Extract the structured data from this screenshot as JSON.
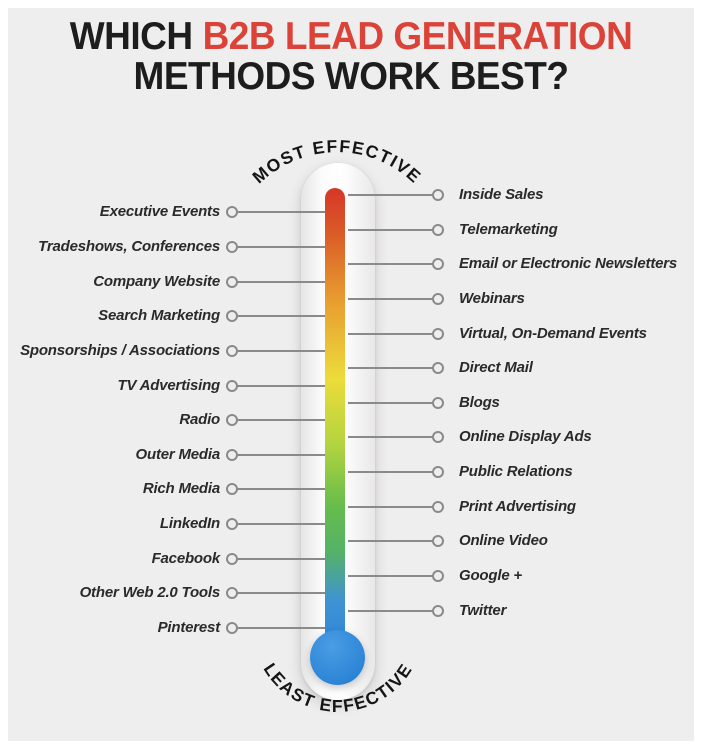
{
  "background": {
    "outer": "#ffffff",
    "panel": "#efeeee"
  },
  "title": {
    "part1": "WHICH",
    "part2": "B2B LEAD GENERATION",
    "line2": "METHODS WORK BEST?",
    "accent_color": "#dc4338",
    "text_color": "#1d1d1d"
  },
  "thermometer": {
    "top_arc_label": "MOST EFFECTIVE",
    "bottom_arc_label": "LEAST EFFECTIVE",
    "gradient_top_to_bottom": [
      "#d63627",
      "#da5b28",
      "#e79a30",
      "#ecdc3a",
      "#b5d43f",
      "#66bd4b",
      "#3f92d4",
      "#2f87d7"
    ],
    "bulb_color": "#338ad8",
    "connector_color": "#8a8a8a",
    "label_text_color": "#2a2a2a"
  },
  "chart_data": {
    "type": "table",
    "title": "WHICH B2B LEAD GENERATION METHODS WORK BEST?",
    "description": "Thermometer infographic ranking B2B lead generation methods from most effective (top, red) to least effective (bottom, blue). Labels alternate right/left down the scale.",
    "columns": [
      "rank",
      "method",
      "side"
    ],
    "rows": [
      [
        1,
        "Inside Sales",
        "right"
      ],
      [
        2,
        "Executive Events",
        "left"
      ],
      [
        3,
        "Telemarketing",
        "right"
      ],
      [
        4,
        "Tradeshows, Conferences",
        "left"
      ],
      [
        5,
        "Email or Electronic Newsletters",
        "right"
      ],
      [
        6,
        "Company Website",
        "left"
      ],
      [
        7,
        "Webinars",
        "right"
      ],
      [
        8,
        "Search Marketing",
        "left"
      ],
      [
        9,
        "Virtual, On-Demand Events",
        "right"
      ],
      [
        10,
        "Sponsorships / Associations",
        "left"
      ],
      [
        11,
        "Direct Mail",
        "right"
      ],
      [
        12,
        "TV Advertising",
        "left"
      ],
      [
        13,
        "Blogs",
        "right"
      ],
      [
        14,
        "Radio",
        "left"
      ],
      [
        15,
        "Online Display Ads",
        "right"
      ],
      [
        16,
        "Outer Media",
        "left"
      ],
      [
        17,
        "Public Relations",
        "right"
      ],
      [
        18,
        "Rich Media",
        "left"
      ],
      [
        19,
        "Print Advertising",
        "right"
      ],
      [
        20,
        "LinkedIn",
        "left"
      ],
      [
        21,
        "Online Video",
        "right"
      ],
      [
        22,
        "Facebook",
        "left"
      ],
      [
        23,
        "Google +",
        "right"
      ],
      [
        24,
        "Other Web 2.0 Tools",
        "left"
      ],
      [
        25,
        "Twitter",
        "right"
      ],
      [
        26,
        "Pinterest",
        "left"
      ]
    ]
  }
}
